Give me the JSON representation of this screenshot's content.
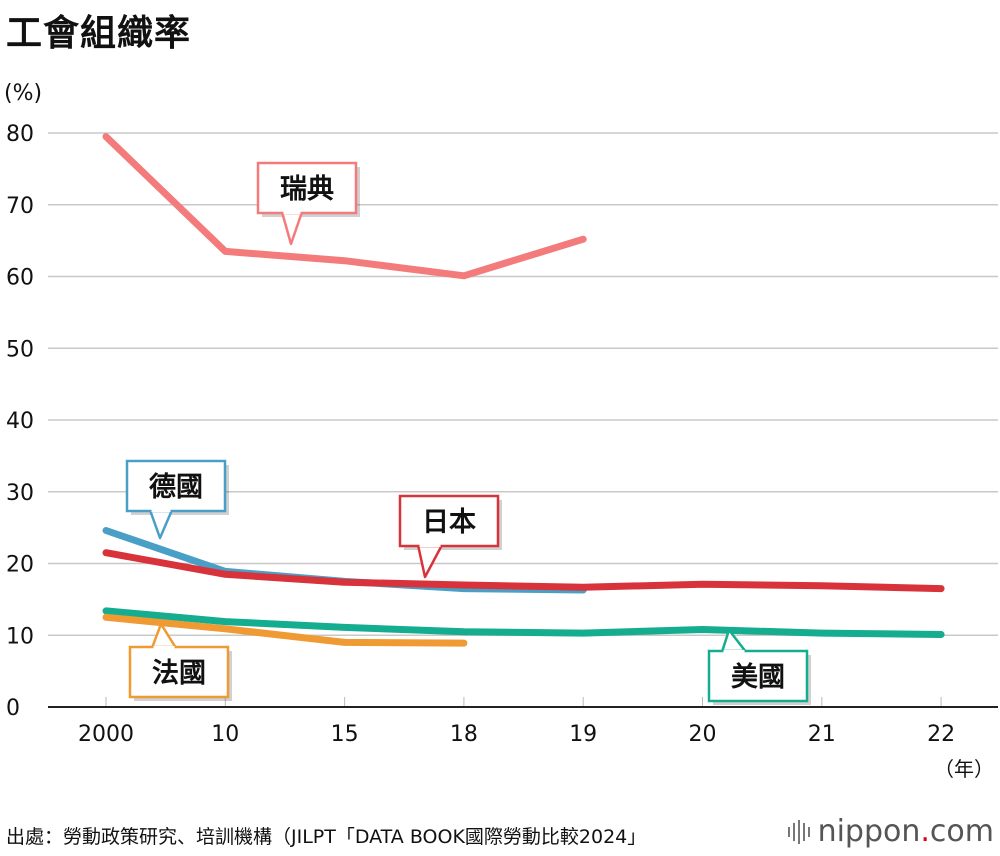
{
  "header": {
    "title": "工會組織率"
  },
  "footer": {
    "source": "出處：勞動政策研究、培訓機構（JILPT「DATA BOOK國際勞動比較2024」",
    "brand_main": "nippon",
    "brand_dot": ".",
    "brand_tail": "com"
  },
  "chart_data": {
    "type": "line",
    "title": "工會組織率",
    "y_unit_label": "(%)",
    "x_unit_label": "（年）",
    "ylim": [
      0,
      80
    ],
    "yticks": [
      0,
      10,
      20,
      30,
      40,
      50,
      60,
      70,
      80
    ],
    "categories": [
      "2000",
      "10",
      "15",
      "18",
      "19",
      "20",
      "21",
      "22"
    ],
    "grid": true,
    "series": [
      {
        "name": "瑞典",
        "color": "#f47b7b",
        "values": [
          79.5,
          63.5,
          62.2,
          60.1,
          65.2,
          null,
          null,
          null
        ]
      },
      {
        "name": "德國",
        "color": "#4a9fc6",
        "values": [
          24.6,
          18.9,
          17.5,
          16.5,
          16.3,
          null,
          null,
          null
        ]
      },
      {
        "name": "日本",
        "color": "#d8323a",
        "values": [
          21.5,
          18.5,
          17.4,
          17.0,
          16.7,
          17.1,
          16.9,
          16.5
        ]
      },
      {
        "name": "美國",
        "color": "#14ad8f",
        "values": [
          13.4,
          11.9,
          11.1,
          10.5,
          10.3,
          10.8,
          10.3,
          10.1
        ]
      },
      {
        "name": "法國",
        "color": "#ef9a33",
        "values": [
          12.5,
          10.9,
          9.0,
          8.9,
          null,
          null,
          null,
          null
        ]
      }
    ]
  }
}
